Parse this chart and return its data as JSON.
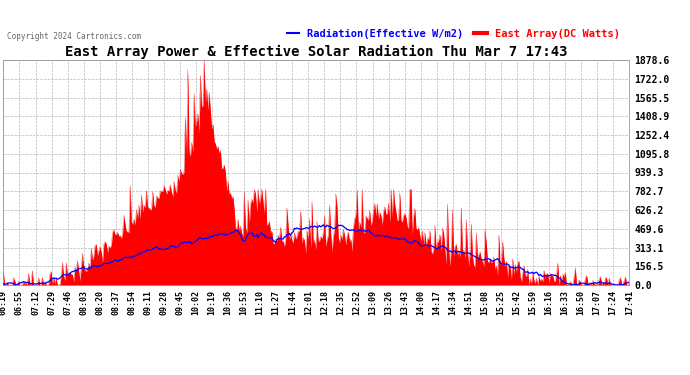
{
  "title": "East Array Power & Effective Solar Radiation Thu Mar 7 17:43",
  "legend_blue": "Radiation(Effective W/m2)",
  "legend_red": "East Array(DC Watts)",
  "copyright": "Copyright 2024 Cartronics.com",
  "ymin": 0.0,
  "ymax": 1878.6,
  "yticks": [
    0.0,
    156.5,
    313.1,
    469.6,
    626.2,
    782.7,
    939.3,
    1095.8,
    1252.4,
    1408.9,
    1565.5,
    1722.0,
    1878.6
  ],
  "xtick_labels": [
    "06:19",
    "06:55",
    "07:12",
    "07:29",
    "07:46",
    "08:03",
    "08:20",
    "08:37",
    "08:54",
    "09:11",
    "09:28",
    "09:45",
    "10:02",
    "10:19",
    "10:36",
    "10:53",
    "11:10",
    "11:27",
    "11:44",
    "12:01",
    "12:18",
    "12:35",
    "12:52",
    "13:09",
    "13:26",
    "13:43",
    "14:00",
    "14:17",
    "14:34",
    "14:51",
    "15:08",
    "15:25",
    "15:42",
    "15:59",
    "16:16",
    "16:33",
    "16:50",
    "17:07",
    "17:24",
    "17:41"
  ],
  "red_color": "#ff0000",
  "blue_color": "#0000ff",
  "grid_color": "#888888",
  "n_points": 500
}
